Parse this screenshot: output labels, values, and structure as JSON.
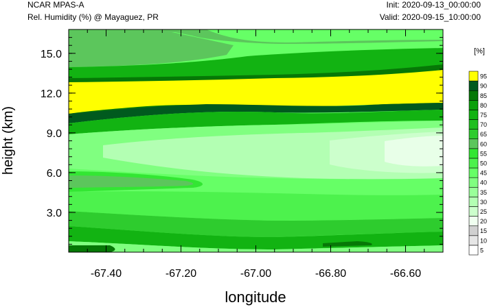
{
  "header": {
    "model": "NCAR MPAS-A",
    "field": "Rel. Humidity (%) @ Mayaguez, PR",
    "init": "Init: 2020-09-13_00:00:00",
    "valid": "Valid: 2020-09-15_10:00:00"
  },
  "chart_data": {
    "type": "heatmap",
    "subtype": "filled-contour cross-section",
    "xlabel": "longitude",
    "ylabel": "height (km)",
    "xlim": [
      -67.5,
      -66.5
    ],
    "ylim": [
      0,
      16.8
    ],
    "x_ticks": [
      -67.4,
      -67.2,
      -67.0,
      -66.8,
      -66.6
    ],
    "x_tick_labels": [
      "-67.40",
      "-67.20",
      "-67.00",
      "-66.80",
      "-66.60"
    ],
    "y_ticks": [
      3.0,
      6.0,
      9.0,
      12.0,
      15.0
    ],
    "y_tick_labels": [
      "3.0",
      "6.0",
      "9.0",
      "12.0",
      "15.0"
    ],
    "colorbar": {
      "unit_label": "[%]",
      "levels": [
        "5",
        "10",
        "15",
        "20",
        "25",
        "30",
        "35",
        "40",
        "45",
        "50",
        "55",
        "60",
        "65",
        "70",
        "75",
        "80",
        "85",
        "90",
        "95"
      ],
      "colors": [
        "#ffffff",
        "#e6e6e6",
        "#d0d0d0",
        "#f0fff0",
        "#ccffcc",
        "#b3ffb3",
        "#99ff99",
        "#80ff80",
        "#66ff66",
        "#4df24d",
        "#33e633",
        "#5cc65c",
        "#2ecc2e",
        "#1fbf1f",
        "#12b312",
        "#0aa00a",
        "#067806",
        "#005a1e",
        "#ffff00"
      ]
    },
    "fields": {
      "surface": 30,
      "near_surface_low": 88,
      "low_level": 60,
      "boundary_layer": 48,
      "mid_level_west": 42,
      "mid_level_east": 22,
      "mid_level_band_west": 68,
      "upper_below_yellow": 88,
      "upper_moist_layer": 96,
      "above_layer": 72,
      "top_west": 62,
      "top_east": 45
    }
  }
}
